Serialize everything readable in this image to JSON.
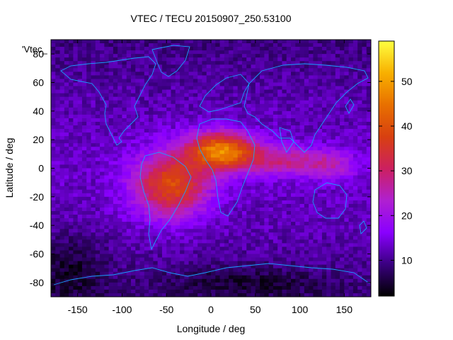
{
  "chart_data": {
    "type": "heatmap",
    "title": "VTEC / TECU 20150907_250.53100",
    "xlabel": "Longitude / deg",
    "ylabel": "Latitude / deg",
    "key_label": "'Vtec_",
    "xlim": [
      -180,
      180
    ],
    "ylim": [
      -90,
      90
    ],
    "x_ticks": [
      -150,
      -100,
      -50,
      0,
      50,
      100,
      150
    ],
    "y_ticks": [
      -80,
      -60,
      -40,
      -20,
      0,
      20,
      40,
      60,
      80
    ],
    "colorbar": {
      "min": 2,
      "max": 59,
      "ticks": [
        10,
        20,
        30,
        40,
        50
      ]
    },
    "grid": false,
    "colormap": [
      "#000000",
      "#3a0080",
      "#8a00ff",
      "#b020d0",
      "#cc2060",
      "#d84010",
      "#e87000",
      "#f8b000",
      "#ffff40"
    ],
    "features": [
      {
        "name": "equatorial anomaly (Africa/Atlantic)",
        "lon": 10,
        "lat": 10,
        "peak_tecu": 45
      },
      {
        "name": "South America / South Atlantic enhancement",
        "lon": -40,
        "lat": -15,
        "peak_tecu": 38
      },
      {
        "name": "Indian Ocean extension",
        "lon": 80,
        "lat": 5,
        "peak_tecu": 30
      },
      {
        "name": "low-TEC high latitudes",
        "lon": 0,
        "lat": -80,
        "peak_tecu": 4
      }
    ]
  }
}
